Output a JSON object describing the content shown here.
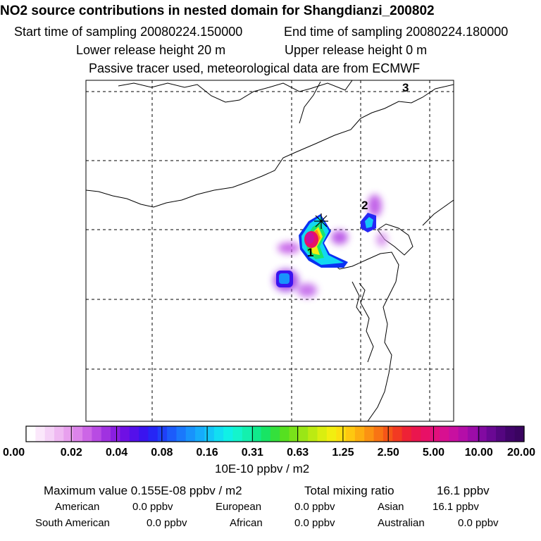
{
  "header": {
    "title": "NO2 source contributions in nested domain for Shangdianzi_200802",
    "start_label": "Start time of sampling 20080224.150000",
    "end_label": "End time of sampling 20080224.180000",
    "lower_label": "Lower release height   20 m",
    "upper_label": "Upper release height    0 m",
    "tracer_label": "Passive tracer used, meteorological data are from ECMWF"
  },
  "chart_data": {
    "type": "heatmap",
    "title": "NO2 source contributions in nested domain for Shangdianzi_200802",
    "annotations": [
      "1",
      "2",
      "3"
    ],
    "colorbar": {
      "ticks": [
        "0.00",
        "0.02",
        "0.04",
        "0.08",
        "0.16",
        "0.31",
        "0.63",
        "1.25",
        "2.50",
        "5.00",
        "10.00",
        "20.00"
      ],
      "unit_label": "10E-10 ppbv / m2",
      "colors": [
        "#ffffff",
        "#fbe8fb",
        "#f5d2f7",
        "#efb9f2",
        "#e8a0ee",
        "#dc84ea",
        "#cc66e6",
        "#b84be3",
        "#a032e0",
        "#8a1fe0",
        "#6f10e4",
        "#5410ea",
        "#3a14ef",
        "#2626f5",
        "#1f40f8",
        "#1c5cfb",
        "#1a78fc",
        "#1893fc",
        "#16acfb",
        "#14c6f8",
        "#12def2",
        "#10f0e6",
        "#14f4cc",
        "#14f0ae",
        "#10ea8c",
        "#18e464",
        "#34e03c",
        "#56e020",
        "#7ae21a",
        "#9ae616",
        "#bcea12",
        "#daee10",
        "#f2ee10",
        "#fce010",
        "#fec810",
        "#fdae10",
        "#fb9212",
        "#f87414",
        "#f55618",
        "#f23a22",
        "#ee2236",
        "#ea164e",
        "#e81066",
        "#e2107c",
        "#d81090",
        "#c810a0",
        "#b40ea8",
        "#9c0ca8",
        "#820aa2",
        "#6a0894",
        "#540680",
        "#42046c",
        "#3a0460"
      ]
    }
  },
  "stats": {
    "max_label": "Maximum value  0.155E-08 ppbv / m2",
    "total_label": "Total mixing ratio",
    "total_value": "16.1 ppbv",
    "regions": [
      {
        "name": "American",
        "value": "0.0 ppbv"
      },
      {
        "name": "European",
        "value": "0.0 ppbv"
      },
      {
        "name": "Asian",
        "value": "16.1 ppbv"
      },
      {
        "name": "South American",
        "value": "0.0 ppbv"
      },
      {
        "name": "African",
        "value": "0.0 ppbv"
      },
      {
        "name": "Australian",
        "value": "0.0 ppbv"
      }
    ]
  }
}
